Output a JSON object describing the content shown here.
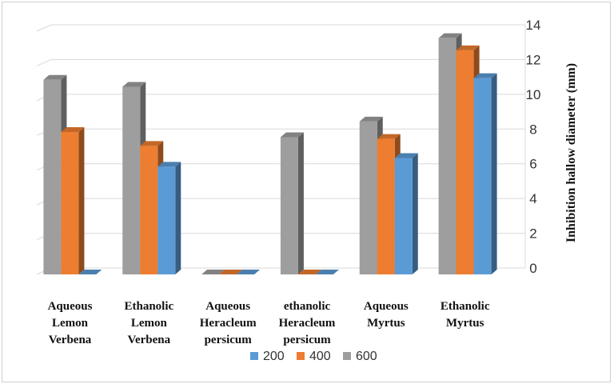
{
  "chart_data": {
    "type": "bar",
    "style": "3d-clustered-column",
    "categories": [
      [
        "Aqueous",
        "Lemon",
        "Verbena"
      ],
      [
        "Ethanolic",
        "Lemon",
        "Verbena"
      ],
      [
        "Aqueous",
        "Heracleum",
        "persicum"
      ],
      [
        "ethanolic",
        "Heracleum",
        "persicum"
      ],
      [
        "Aqueous",
        "Myrtus"
      ],
      [
        "Ethanolic",
        "Myrtus"
      ]
    ],
    "series": [
      {
        "name": "600",
        "color": "#9e9e9e",
        "values": [
          11.2,
          10.8,
          0,
          7.9,
          8.8,
          13.6
        ]
      },
      {
        "name": "400",
        "color": "#ed7d31",
        "values": [
          8.2,
          7.4,
          0,
          0,
          7.8,
          12.9
        ]
      },
      {
        "name": "200",
        "color": "#5b9bd5",
        "values": [
          0,
          6.2,
          0,
          0,
          6.7,
          11.3
        ]
      }
    ],
    "legend_order": [
      "200",
      "400",
      "600"
    ],
    "ylabel": "Inhibition hallow diameter (mm)",
    "ylim": [
      0,
      14
    ],
    "yticks": [
      0,
      2,
      4,
      6,
      8,
      10,
      12,
      14
    ],
    "y_axis_position": "right",
    "legend_position": "bottom",
    "grid": true
  }
}
